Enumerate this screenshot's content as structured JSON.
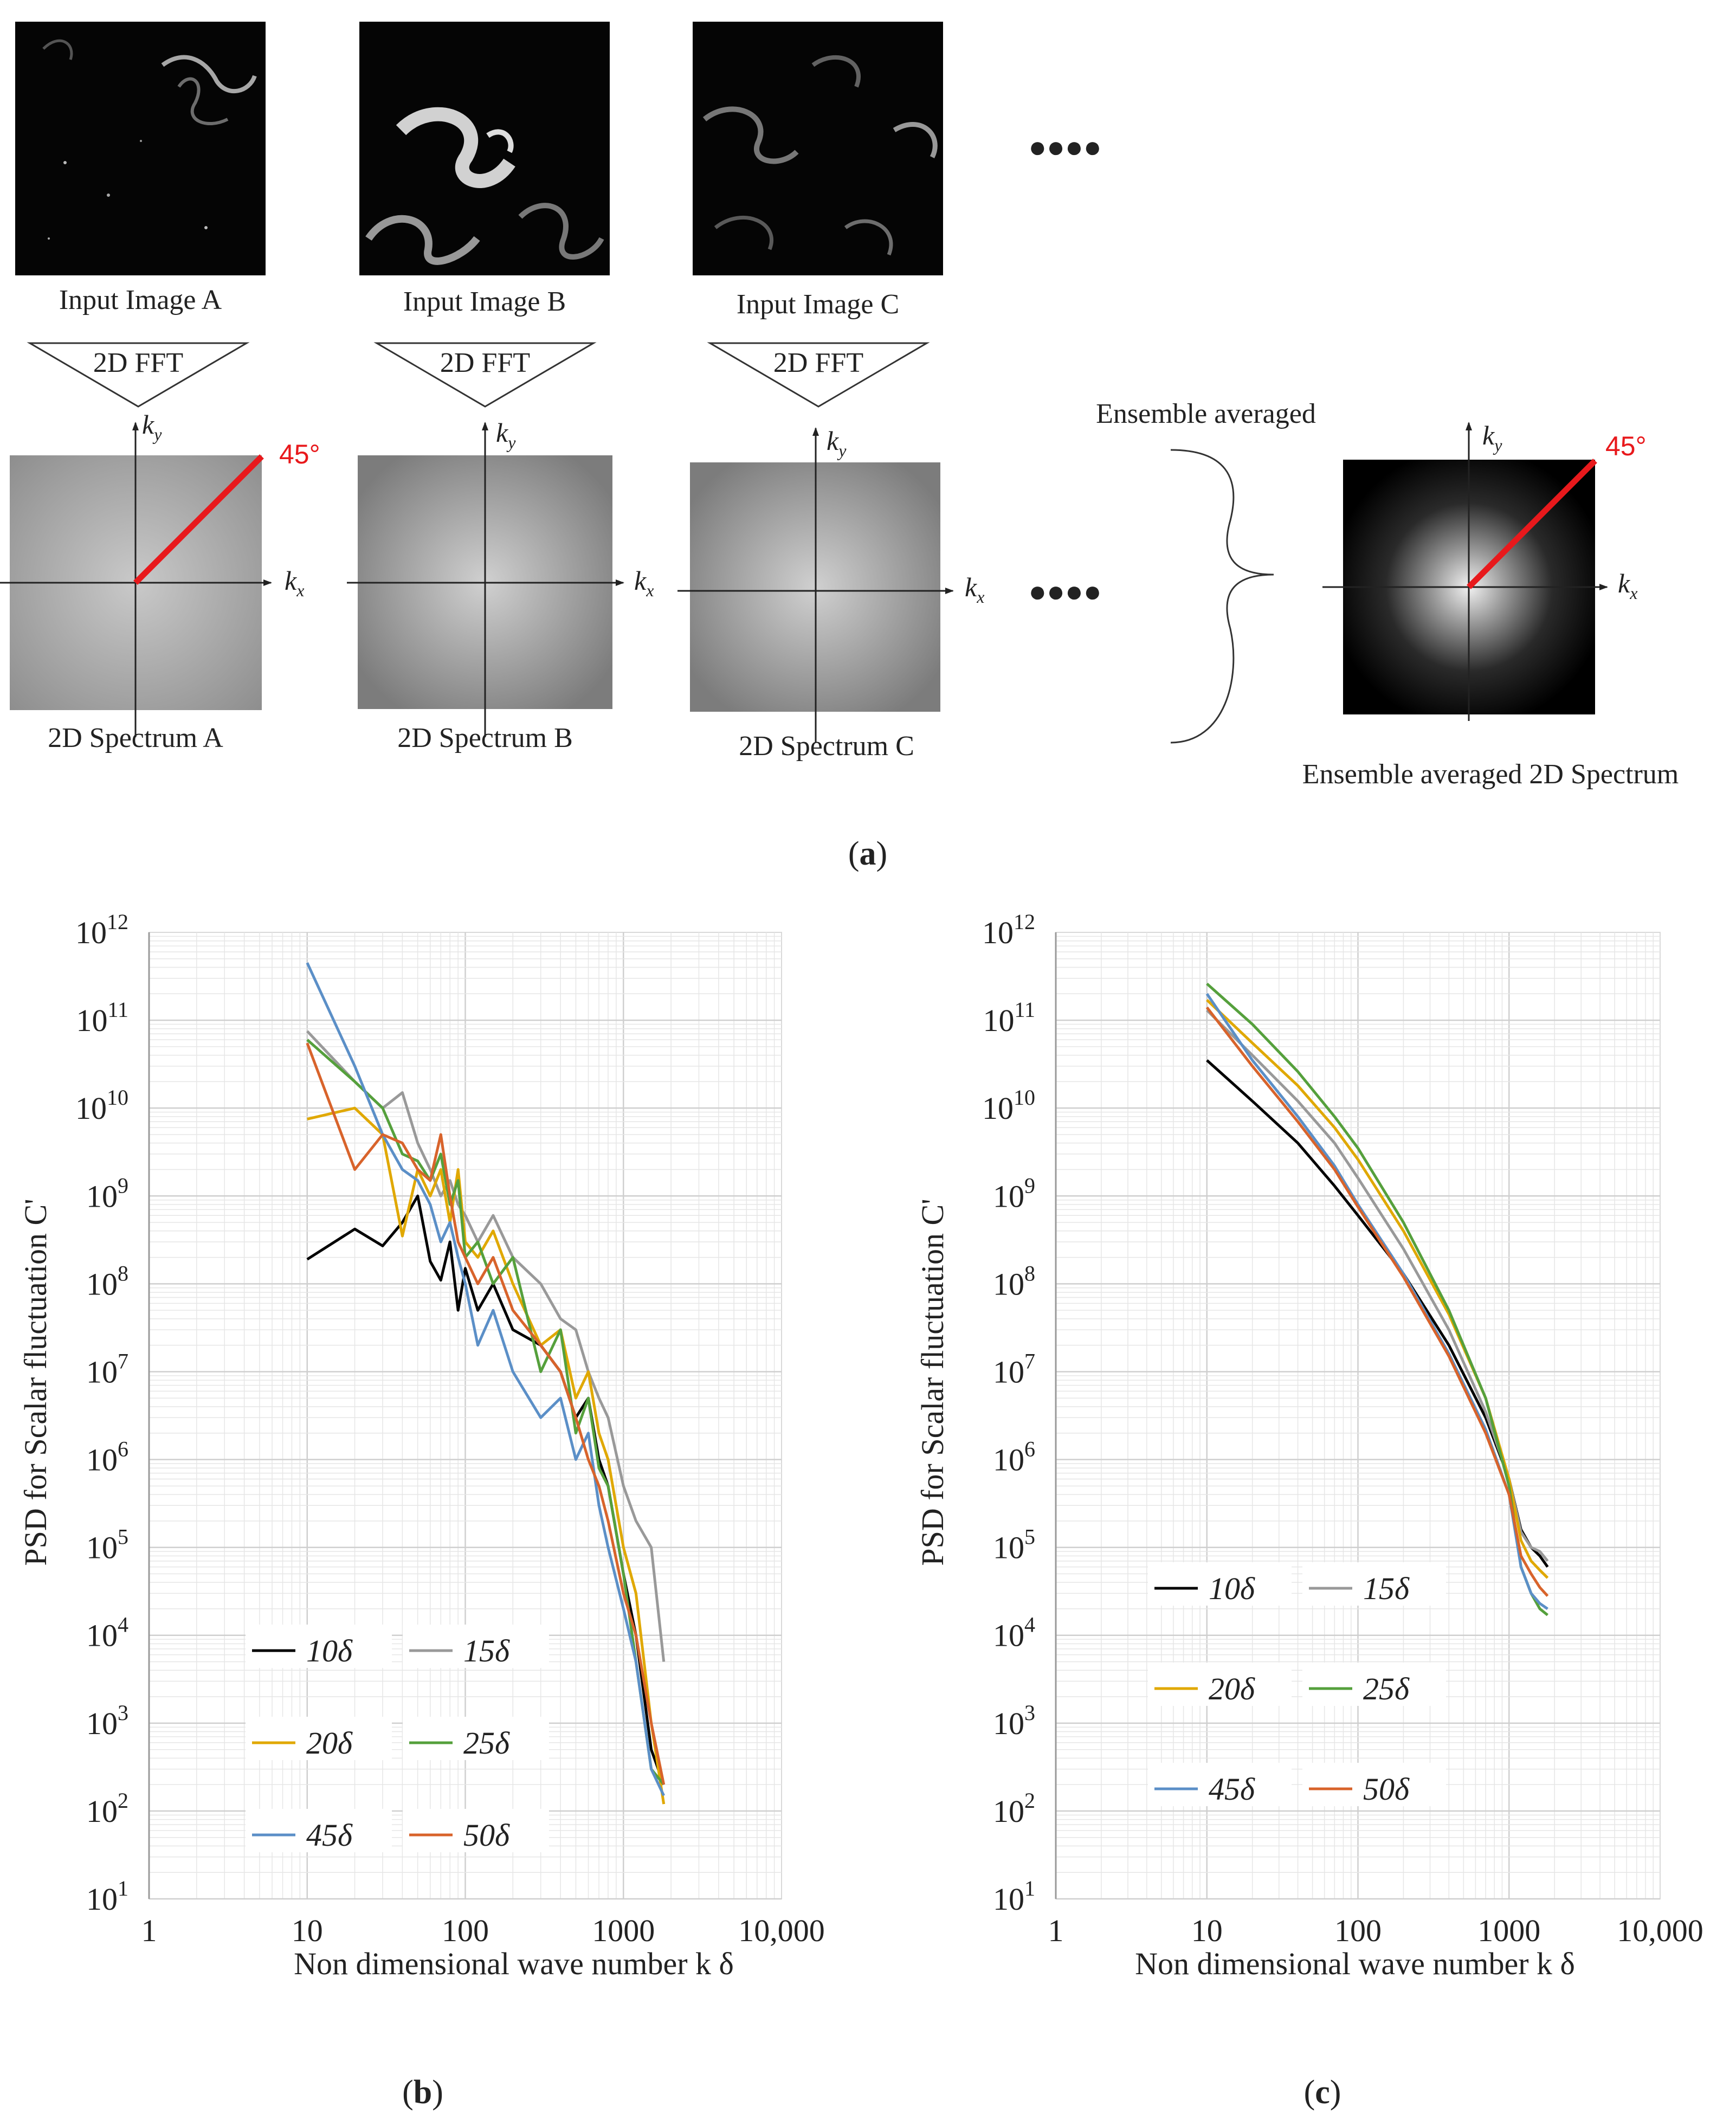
{
  "panel_a": {
    "inputs": [
      {
        "label": "Input Image A",
        "fft": "2D FFT",
        "spectrum": "2D Spectrum A"
      },
      {
        "label": "Input Image B",
        "fft": "2D FFT",
        "spectrum": "2D Spectrum B"
      },
      {
        "label": "Input Image C",
        "fft": "2D FFT",
        "spectrum": "2D Spectrum C"
      }
    ],
    "ellipsis": "●●●●",
    "ensemble_label": "Ensemble averaged",
    "ensemble_spectrum": "Ensemble averaged 2D Spectrum",
    "angle_label": "45°",
    "axis_kx": "k",
    "axis_kx_sub": "x",
    "axis_ky": "k",
    "axis_ky_sub": "y",
    "colors": {
      "angle_line": "#e8191c"
    }
  },
  "captions": {
    "a": "a",
    "b": "b",
    "c": "c"
  },
  "chart_data": [
    {
      "id": "b",
      "type": "line",
      "xscale": "log",
      "yscale": "log",
      "xlim": [
        1,
        10000
      ],
      "ylim": [
        10,
        1000000000000
      ],
      "xlabel": "Non dimensional wave number k δ",
      "ylabel": "PSD for Scalar  fluctuation C'",
      "x_ticks": [
        "1",
        "10",
        "100",
        "1000",
        "10,000"
      ],
      "y_tick_exponents": [
        "1",
        "2",
        "3",
        "4",
        "5",
        "6",
        "7",
        "8",
        "9",
        "10",
        "11",
        "12"
      ],
      "y_tick_base": "10",
      "legend_position": "lower-left",
      "series": [
        {
          "name": "10δ",
          "color": "#000000",
          "x": [
            10,
            20,
            30,
            40,
            50,
            60,
            70,
            80,
            90,
            100,
            120,
            150,
            200,
            300,
            400,
            500,
            600,
            700,
            800,
            1000,
            1200,
            1500,
            1800
          ],
          "y": [
            190000000.0,
            420000000.0,
            270000000.0,
            500000000.0,
            1000000000.0,
            180000000.0,
            110000000.0,
            300000000.0,
            50000000.0,
            150000000.0,
            50000000.0,
            100000000.0,
            30000000.0,
            20000000.0,
            10000000.0,
            3000000.0,
            5000000.0,
            1000000.0,
            500000.0,
            50000.0,
            10000.0,
            500,
            200
          ]
        },
        {
          "name": "15δ",
          "color": "#999999",
          "x": [
            10,
            20,
            30,
            40,
            50,
            60,
            70,
            80,
            90,
            100,
            120,
            150,
            200,
            300,
            400,
            500,
            600,
            700,
            800,
            1000,
            1200,
            1500,
            1800
          ],
          "y": [
            75000000000.0,
            20000000000.0,
            10000000000.0,
            15000000000.0,
            4000000000.0,
            2000000000.0,
            1000000000.0,
            1500000000.0,
            800000000.0,
            600000000.0,
            300000000.0,
            600000000.0,
            200000000.0,
            100000000.0,
            40000000.0,
            30000000.0,
            10000000.0,
            5000000.0,
            3000000.0,
            500000.0,
            200000.0,
            100000.0,
            5000.0
          ]
        },
        {
          "name": "20δ",
          "color": "#e0a800",
          "x": [
            10,
            20,
            30,
            40,
            50,
            60,
            70,
            80,
            90,
            100,
            120,
            150,
            200,
            300,
            400,
            500,
            600,
            700,
            800,
            1000,
            1200,
            1500,
            1800
          ],
          "y": [
            7500000000.0,
            10000000000.0,
            5000000000.0,
            350000000.0,
            2000000000.0,
            1000000000.0,
            2000000000.0,
            500000000.0,
            2000000000.0,
            300000000.0,
            200000000.0,
            400000000.0,
            100000000.0,
            20000000.0,
            30000000.0,
            5000000.0,
            10000000.0,
            2000000.0,
            1000000.0,
            100000.0,
            30000.0,
            1000.0,
            120
          ]
        },
        {
          "name": "25δ",
          "color": "#55a03c",
          "x": [
            10,
            20,
            30,
            40,
            50,
            60,
            70,
            80,
            90,
            100,
            120,
            150,
            200,
            300,
            400,
            500,
            600,
            700,
            800,
            1000,
            1200,
            1500,
            1800
          ],
          "y": [
            60000000000.0,
            20000000000.0,
            10000000000.0,
            3000000000.0,
            2500000000.0,
            1500000000.0,
            3000000000.0,
            800000000.0,
            1500000000.0,
            200000000.0,
            300000000.0,
            100000000.0,
            200000000.0,
            10000000.0,
            30000000.0,
            2000000.0,
            5000000.0,
            800000.0,
            500000.0,
            50000.0,
            5000.0,
            300,
            200
          ]
        },
        {
          "name": "45δ",
          "color": "#5b8fc7",
          "x": [
            10,
            20,
            30,
            40,
            50,
            60,
            70,
            80,
            90,
            100,
            120,
            150,
            200,
            300,
            400,
            500,
            600,
            700,
            800,
            1000,
            1200,
            1500,
            1800
          ],
          "y": [
            450000000000.0,
            30000000000.0,
            5000000000.0,
            2000000000.0,
            1500000000.0,
            800000000.0,
            300000000.0,
            500000000.0,
            200000000.0,
            100000000.0,
            20000000.0,
            50000000.0,
            10000000.0,
            3000000.0,
            5000000.0,
            1000000.0,
            2000000.0,
            300000.0,
            100000.0,
            20000.0,
            5000.0,
            300,
            150
          ]
        },
        {
          "name": "50δ",
          "color": "#d8632b",
          "x": [
            10,
            20,
            30,
            40,
            50,
            60,
            70,
            80,
            90,
            100,
            120,
            150,
            200,
            300,
            400,
            500,
            600,
            700,
            800,
            1000,
            1200,
            1500,
            1800
          ],
          "y": [
            55000000000.0,
            2000000000.0,
            5000000000.0,
            4000000000.0,
            2000000000.0,
            1500000000.0,
            5000000000.0,
            1000000000.0,
            300000000.0,
            200000000.0,
            100000000.0,
            200000000.0,
            50000000.0,
            20000000.0,
            10000000.0,
            3000000.0,
            1000000.0,
            500000.0,
            200000.0,
            30000.0,
            10000.0,
            1000.0,
            200
          ]
        }
      ]
    },
    {
      "id": "c",
      "type": "line",
      "xscale": "log",
      "yscale": "log",
      "xlim": [
        1,
        10000
      ],
      "ylim": [
        10,
        1000000000000
      ],
      "xlabel": "Non dimensional  wave number k δ",
      "ylabel": "PSD for Scalar  fluctuation C'",
      "x_ticks": [
        "1",
        "10",
        "100",
        "1000",
        "10,000"
      ],
      "y_tick_exponents": [
        "1",
        "2",
        "3",
        "4",
        "5",
        "6",
        "7",
        "8",
        "9",
        "10",
        "11",
        "12"
      ],
      "y_tick_base": "10",
      "legend_position": "lower-left",
      "series": [
        {
          "name": "10δ",
          "color": "#000000",
          "x": [
            10,
            20,
            40,
            70,
            100,
            200,
            400,
            700,
            1000,
            1200,
            1400,
            1600,
            1800
          ],
          "y": [
            35000000000.0,
            12000000000.0,
            4000000000.0,
            1300000000.0,
            600000000.0,
            130000000.0,
            20000000.0,
            3000000.0,
            600000.0,
            160000.0,
            100000.0,
            80000.0,
            60000.0
          ]
        },
        {
          "name": "15δ",
          "color": "#999999",
          "x": [
            10,
            20,
            40,
            70,
            100,
            200,
            400,
            700,
            1000,
            1200,
            1400,
            1600,
            1800
          ],
          "y": [
            130000000000.0,
            40000000000.0,
            12000000000.0,
            4000000000.0,
            1600000000.0,
            250000000.0,
            30000000.0,
            3500000.0,
            600000.0,
            150000.0,
            100000.0,
            90000.0,
            70000.0
          ]
        },
        {
          "name": "20δ",
          "color": "#e0a800",
          "x": [
            10,
            20,
            40,
            70,
            100,
            200,
            400,
            700,
            1000,
            1200,
            1400,
            1600,
            1800
          ],
          "y": [
            170000000000.0,
            55000000000.0,
            18000000000.0,
            6000000000.0,
            2600000000.0,
            400000000.0,
            45000000.0,
            5000000.0,
            600000.0,
            120000.0,
            70000.0,
            55000.0,
            45000.0
          ]
        },
        {
          "name": "25δ",
          "color": "#55a03c",
          "x": [
            10,
            20,
            40,
            70,
            100,
            200,
            400,
            700,
            1000,
            1200,
            1400,
            1600,
            1800
          ],
          "y": [
            260000000000.0,
            90000000000.0,
            26000000000.0,
            8000000000.0,
            3500000000.0,
            500000000.0,
            50000000.0,
            5000000.0,
            500000.0,
            60000.0,
            30000.0,
            20000.0,
            17000.0
          ]
        },
        {
          "name": "45δ",
          "color": "#5b8fc7",
          "x": [
            10,
            20,
            40,
            70,
            100,
            200,
            400,
            700,
            1000,
            1200,
            1400,
            1600,
            1800
          ],
          "y": [
            200000000000.0,
            35000000000.0,
            8000000000.0,
            2200000000.0,
            800000000.0,
            130000000.0,
            16000000.0,
            2200000.0,
            400000.0,
            60000.0,
            30000.0,
            23000.0,
            20000.0
          ]
        },
        {
          "name": "50δ",
          "color": "#d8632b",
          "x": [
            10,
            20,
            40,
            70,
            100,
            200,
            400,
            700,
            1000,
            1200,
            1400,
            1600,
            1800
          ],
          "y": [
            140000000000.0,
            30000000000.0,
            7000000000.0,
            2000000000.0,
            750000000.0,
            120000000.0,
            15000000.0,
            2000000.0,
            400000.0,
            80000.0,
            50000.0,
            35000.0,
            28000.0
          ]
        }
      ]
    }
  ]
}
